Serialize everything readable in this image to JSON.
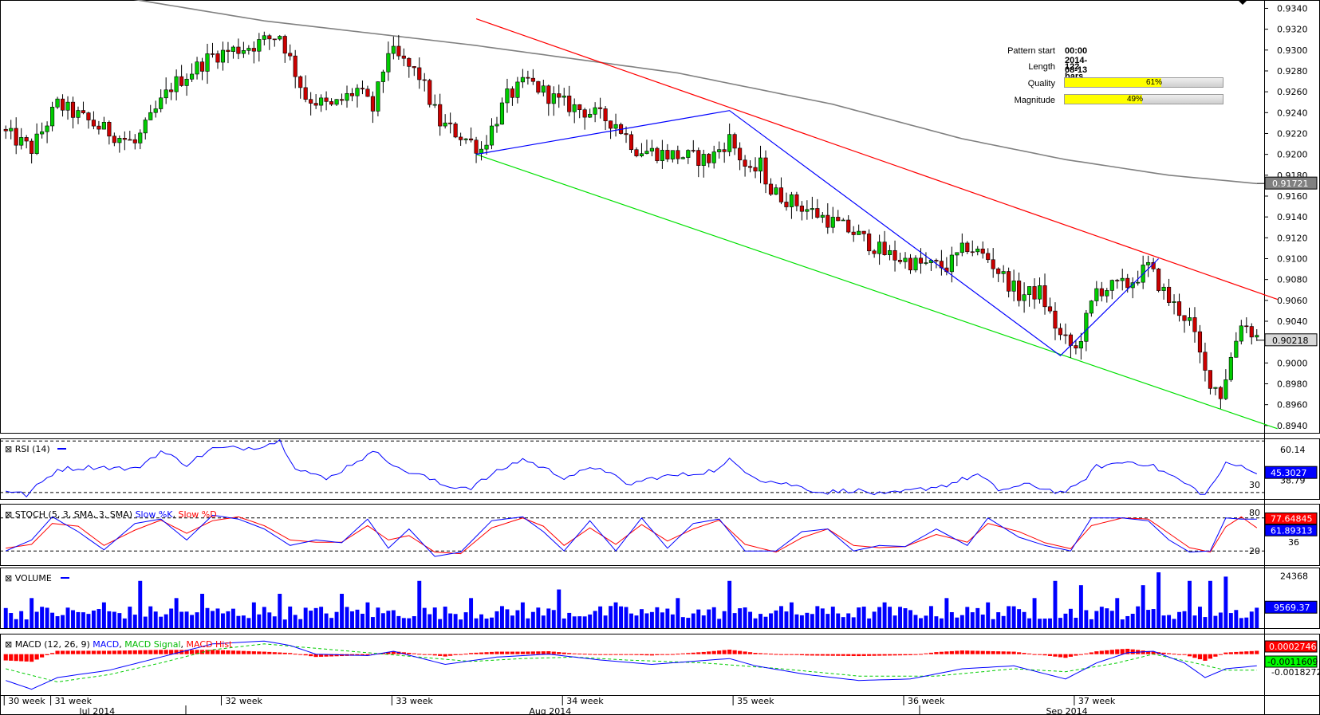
{
  "pattern_info": {
    "start_label": "Pattern start",
    "start_value": "00:00 2014-08-13",
    "length_label": "Length",
    "length_value": "122 bars",
    "quality_label": "Quality",
    "quality_pct": 61,
    "quality_text": "61%",
    "magnitude_label": "Magnitude",
    "magnitude_pct": 49,
    "magnitude_text": "49%"
  },
  "colors": {
    "bull": "#00cc00",
    "bear": "#cc0000",
    "resistance": "#ff0000",
    "support": "#00e000",
    "zigzag": "#0000ff",
    "ma": "#808080",
    "quality_fill": "#ffff00"
  },
  "chart_data": [
    {
      "type": "candlestick",
      "panel": "price",
      "y_ticks": [
        "0.9340",
        "0.9320",
        "0.9300",
        "0.9280",
        "0.9260",
        "0.9240",
        "0.9220",
        "0.9200",
        "0.9180",
        "0.9160",
        "0.9140",
        "0.9120",
        "0.9100",
        "0.9080",
        "0.9060",
        "0.9040",
        "0.9020",
        "0.9000",
        "0.8980",
        "0.8960",
        "0.8940"
      ],
      "ylim": [
        0.8933,
        0.9348
      ],
      "current_price_label": "0.90218",
      "current_price": 0.90218,
      "ma_label": "0.91721",
      "ma_value": 0.91721,
      "n_bars": 243,
      "anchors": [
        [
          0,
          0.922
        ],
        [
          5,
          0.9205
        ],
        [
          10,
          0.9248
        ],
        [
          18,
          0.9226
        ],
        [
          25,
          0.921
        ],
        [
          32,
          0.9265
        ],
        [
          40,
          0.9295
        ],
        [
          48,
          0.9305
        ],
        [
          53,
          0.9315
        ],
        [
          58,
          0.9255
        ],
        [
          63,
          0.9245
        ],
        [
          68,
          0.9262
        ],
        [
          71,
          0.9243
        ],
        [
          74,
          0.93
        ],
        [
          80,
          0.9275
        ],
        [
          84,
          0.923
        ],
        [
          89,
          0.9215
        ],
        [
          92,
          0.9205
        ],
        [
          97,
          0.9255
        ],
        [
          101,
          0.927
        ],
        [
          107,
          0.925
        ],
        [
          113,
          0.924
        ],
        [
          118,
          0.923
        ],
        [
          122,
          0.9205
        ],
        [
          128,
          0.92
        ],
        [
          136,
          0.9195
        ],
        [
          140,
          0.9215
        ],
        [
          144,
          0.918
        ],
        [
          146,
          0.919
        ],
        [
          148,
          0.9165
        ],
        [
          152,
          0.9155
        ],
        [
          158,
          0.914
        ],
        [
          164,
          0.9125
        ],
        [
          170,
          0.9105
        ],
        [
          176,
          0.9095
        ],
        [
          182,
          0.9092
        ],
        [
          186,
          0.9112
        ],
        [
          190,
          0.91
        ],
        [
          196,
          0.9065
        ],
        [
          200,
          0.9068
        ],
        [
          204,
          0.9025
        ],
        [
          207,
          0.9012
        ],
        [
          211,
          0.907
        ],
        [
          217,
          0.9075
        ],
        [
          221,
          0.9092
        ],
        [
          225,
          0.906
        ],
        [
          229,
          0.904
        ],
        [
          232,
          0.899
        ],
        [
          235,
          0.897
        ],
        [
          239,
          0.904
        ],
        [
          242,
          0.9025
        ]
      ],
      "ma_path": [
        [
          23,
          0.935
        ],
        [
          50,
          0.9328
        ],
        [
          90,
          0.9305
        ],
        [
          130,
          0.9278
        ],
        [
          160,
          0.9248
        ],
        [
          185,
          0.9215
        ],
        [
          205,
          0.9195
        ],
        [
          225,
          0.918
        ],
        [
          242,
          0.9172
        ]
      ],
      "support_line": {
        "from": [
          91,
          0.92
        ],
        "to": [
          246,
          0.8937
        ]
      },
      "resistance_line": {
        "from": [
          91,
          0.933
        ],
        "to": [
          246,
          0.9061
        ]
      },
      "zigzag": [
        [
          91,
          0.92
        ],
        [
          140,
          0.9242
        ],
        [
          204,
          0.9007
        ],
        [
          223,
          0.91
        ]
      ]
    },
    {
      "type": "line",
      "panel": "rsi",
      "title": "RSI (14)",
      "level_labels": [
        "60.14",
        "30",
        "38.79"
      ],
      "levels": [
        70,
        30
      ],
      "ylim": [
        25,
        72
      ],
      "current_label": "45.3027",
      "current": 45.3,
      "anchors": [
        [
          0,
          32
        ],
        [
          4,
          28
        ],
        [
          10,
          48
        ],
        [
          18,
          50
        ],
        [
          25,
          48
        ],
        [
          30,
          62
        ],
        [
          35,
          52
        ],
        [
          40,
          64
        ],
        [
          48,
          65
        ],
        [
          53,
          70
        ],
        [
          56,
          50
        ],
        [
          62,
          40
        ],
        [
          68,
          55
        ],
        [
          72,
          62
        ],
        [
          76,
          48
        ],
        [
          80,
          44
        ],
        [
          85,
          35
        ],
        [
          90,
          34
        ],
        [
          95,
          46
        ],
        [
          100,
          56
        ],
        [
          108,
          42
        ],
        [
          115,
          50
        ],
        [
          120,
          36
        ],
        [
          126,
          42
        ],
        [
          132,
          44
        ],
        [
          138,
          48
        ],
        [
          140,
          55
        ],
        [
          146,
          40
        ],
        [
          152,
          36
        ],
        [
          158,
          30
        ],
        [
          164,
          32
        ],
        [
          170,
          28
        ],
        [
          176,
          32
        ],
        [
          182,
          36
        ],
        [
          188,
          44
        ],
        [
          192,
          32
        ],
        [
          198,
          36
        ],
        [
          204,
          30
        ],
        [
          207,
          34
        ],
        [
          211,
          50
        ],
        [
          217,
          54
        ],
        [
          221,
          52
        ],
        [
          226,
          42
        ],
        [
          232,
          28
        ],
        [
          236,
          52
        ],
        [
          240,
          50
        ],
        [
          242,
          45
        ]
      ]
    },
    {
      "type": "line",
      "panel": "stochastic",
      "title": "STOCH (5, 3, SMA, 3, SMA)",
      "legend": [
        "Slow %K",
        "Slow %D"
      ],
      "level_labels": [
        "80",
        "20",
        "36"
      ],
      "levels": [
        80,
        20
      ],
      "ylim": [
        0,
        100
      ],
      "current_labels": [
        "77.64845",
        "61.89313"
      ],
      "k_current": 77.6,
      "d_current": 61.9,
      "k_anchors": [
        [
          0,
          20
        ],
        [
          5,
          40
        ],
        [
          9,
          82
        ],
        [
          14,
          55
        ],
        [
          19,
          22
        ],
        [
          25,
          70
        ],
        [
          30,
          78
        ],
        [
          35,
          40
        ],
        [
          40,
          85
        ],
        [
          45,
          78
        ],
        [
          50,
          60
        ],
        [
          55,
          30
        ],
        [
          60,
          40
        ],
        [
          65,
          35
        ],
        [
          70,
          78
        ],
        [
          74,
          25
        ],
        [
          78,
          60
        ],
        [
          83,
          10
        ],
        [
          88,
          18
        ],
        [
          94,
          75
        ],
        [
          100,
          82
        ],
        [
          104,
          55
        ],
        [
          108,
          20
        ],
        [
          113,
          75
        ],
        [
          118,
          20
        ],
        [
          123,
          80
        ],
        [
          128,
          25
        ],
        [
          133,
          70
        ],
        [
          138,
          78
        ],
        [
          143,
          20
        ],
        [
          149,
          20
        ],
        [
          154,
          55
        ],
        [
          159,
          60
        ],
        [
          164,
          20
        ],
        [
          169,
          30
        ],
        [
          174,
          28
        ],
        [
          180,
          60
        ],
        [
          186,
          30
        ],
        [
          190,
          80
        ],
        [
          196,
          45
        ],
        [
          201,
          30
        ],
        [
          206,
          20
        ],
        [
          210,
          80
        ],
        [
          216,
          80
        ],
        [
          221,
          75
        ],
        [
          225,
          40
        ],
        [
          229,
          18
        ],
        [
          233,
          20
        ],
        [
          236,
          80
        ],
        [
          239,
          78
        ],
        [
          242,
          78
        ]
      ],
      "d_anchors": [
        [
          0,
          25
        ],
        [
          5,
          32
        ],
        [
          9,
          70
        ],
        [
          14,
          65
        ],
        [
          19,
          30
        ],
        [
          25,
          58
        ],
        [
          30,
          76
        ],
        [
          35,
          52
        ],
        [
          40,
          75
        ],
        [
          45,
          82
        ],
        [
          50,
          66
        ],
        [
          55,
          40
        ],
        [
          60,
          36
        ],
        [
          65,
          36
        ],
        [
          70,
          66
        ],
        [
          74,
          40
        ],
        [
          78,
          48
        ],
        [
          83,
          18
        ],
        [
          88,
          15
        ],
        [
          94,
          62
        ],
        [
          100,
          80
        ],
        [
          104,
          65
        ],
        [
          108,
          30
        ],
        [
          113,
          62
        ],
        [
          118,
          32
        ],
        [
          123,
          68
        ],
        [
          128,
          38
        ],
        [
          133,
          60
        ],
        [
          138,
          76
        ],
        [
          143,
          32
        ],
        [
          149,
          18
        ],
        [
          154,
          44
        ],
        [
          159,
          60
        ],
        [
          164,
          30
        ],
        [
          169,
          26
        ],
        [
          174,
          28
        ],
        [
          180,
          50
        ],
        [
          186,
          36
        ],
        [
          190,
          70
        ],
        [
          196,
          55
        ],
        [
          201,
          35
        ],
        [
          206,
          24
        ],
        [
          210,
          66
        ],
        [
          216,
          80
        ],
        [
          221,
          78
        ],
        [
          225,
          52
        ],
        [
          229,
          26
        ],
        [
          233,
          18
        ],
        [
          236,
          64
        ],
        [
          239,
          82
        ],
        [
          242,
          62
        ]
      ]
    },
    {
      "type": "bar",
      "panel": "volume",
      "title": "VOLUME",
      "tick_label": "24368",
      "ylim": [
        0,
        26000
      ],
      "current_label": "9569.37",
      "current": 9569,
      "spikes": [
        [
          5,
          14
        ],
        [
          19,
          12
        ],
        [
          26,
          22
        ],
        [
          33,
          14
        ],
        [
          38,
          16
        ],
        [
          48,
          12
        ],
        [
          53,
          16
        ],
        [
          65,
          16
        ],
        [
          70,
          12
        ],
        [
          80,
          22
        ],
        [
          90,
          14
        ],
        [
          100,
          12
        ],
        [
          107,
          18
        ],
        [
          118,
          12
        ],
        [
          130,
          14
        ],
        [
          140,
          22
        ],
        [
          152,
          12
        ],
        [
          160,
          10
        ],
        [
          170,
          12
        ],
        [
          182,
          14
        ],
        [
          190,
          12
        ],
        [
          199,
          14
        ],
        [
          203,
          22
        ],
        [
          208,
          20
        ],
        [
          215,
          14
        ],
        [
          220,
          20
        ],
        [
          223,
          26
        ],
        [
          229,
          22
        ],
        [
          233,
          22
        ],
        [
          236,
          24
        ],
        [
          242,
          9.5
        ]
      ]
    },
    {
      "type": "line",
      "panel": "macd",
      "title": "MACD (12, 26, 9)",
      "legend": [
        "MACD",
        "MACD Signal",
        "MACD Hist"
      ],
      "ylim": [
        -0.0028,
        0.0014
      ],
      "value_labels": [
        "0.0002746",
        "-0.0011609",
        "-0.0018272"
      ],
      "macd_anchors": [
        [
          0,
          -0.0018
        ],
        [
          5,
          -0.0024
        ],
        [
          10,
          -0.0016
        ],
        [
          20,
          -0.0011
        ],
        [
          30,
          -0.0002
        ],
        [
          40,
          0.0007
        ],
        [
          50,
          0.0009
        ],
        [
          55,
          0.0006
        ],
        [
          60,
          0.0
        ],
        [
          70,
          -0.0001
        ],
        [
          75,
          0.0002
        ],
        [
          85,
          -0.0007
        ],
        [
          95,
          -0.0002
        ],
        [
          105,
          0.0
        ],
        [
          115,
          -0.0004
        ],
        [
          125,
          -0.0007
        ],
        [
          140,
          -0.0003
        ],
        [
          145,
          -0.0008
        ],
        [
          155,
          -0.0014
        ],
        [
          165,
          -0.0018
        ],
        [
          175,
          -0.0017
        ],
        [
          185,
          -0.001
        ],
        [
          195,
          -0.0008
        ],
        [
          205,
          -0.0017
        ],
        [
          211,
          -0.0006
        ],
        [
          217,
          0.0001
        ],
        [
          222,
          0.0002
        ],
        [
          228,
          -0.0006
        ],
        [
          232,
          -0.0016
        ],
        [
          236,
          -0.001
        ],
        [
          242,
          -0.0008
        ]
      ],
      "signal_anchors": [
        [
          0,
          -0.001
        ],
        [
          10,
          -0.0019
        ],
        [
          20,
          -0.0014
        ],
        [
          30,
          -0.0006
        ],
        [
          40,
          0.0003
        ],
        [
          50,
          0.0007
        ],
        [
          60,
          0.0004
        ],
        [
          70,
          0.0001
        ],
        [
          80,
          -0.0002
        ],
        [
          90,
          -0.0005
        ],
        [
          100,
          -0.0003
        ],
        [
          110,
          -0.0002
        ],
        [
          120,
          -0.0004
        ],
        [
          135,
          -0.0006
        ],
        [
          150,
          -0.001
        ],
        [
          165,
          -0.0015
        ],
        [
          180,
          -0.0015
        ],
        [
          195,
          -0.001
        ],
        [
          205,
          -0.0012
        ],
        [
          215,
          -0.0006
        ],
        [
          222,
          0.0
        ],
        [
          230,
          -0.0006
        ],
        [
          236,
          -0.0011
        ],
        [
          242,
          -0.0011
        ]
      ]
    }
  ],
  "x_axis": {
    "weeks": [
      {
        "label": "30 week",
        "bar": 0
      },
      {
        "label": "31 week",
        "bar": 9
      },
      {
        "label": "32 week",
        "bar": 42
      },
      {
        "label": "33 week",
        "bar": 75
      },
      {
        "label": "34 week",
        "bar": 108
      },
      {
        "label": "35 week",
        "bar": 141
      },
      {
        "label": "36 week",
        "bar": 174
      },
      {
        "label": "37 week",
        "bar": 207
      }
    ],
    "months": [
      {
        "label": "Jul 2014",
        "bar": 17
      },
      {
        "label": "Aug 2014",
        "bar": 104
      },
      {
        "label": "Sep 2014",
        "bar": 204
      }
    ]
  }
}
